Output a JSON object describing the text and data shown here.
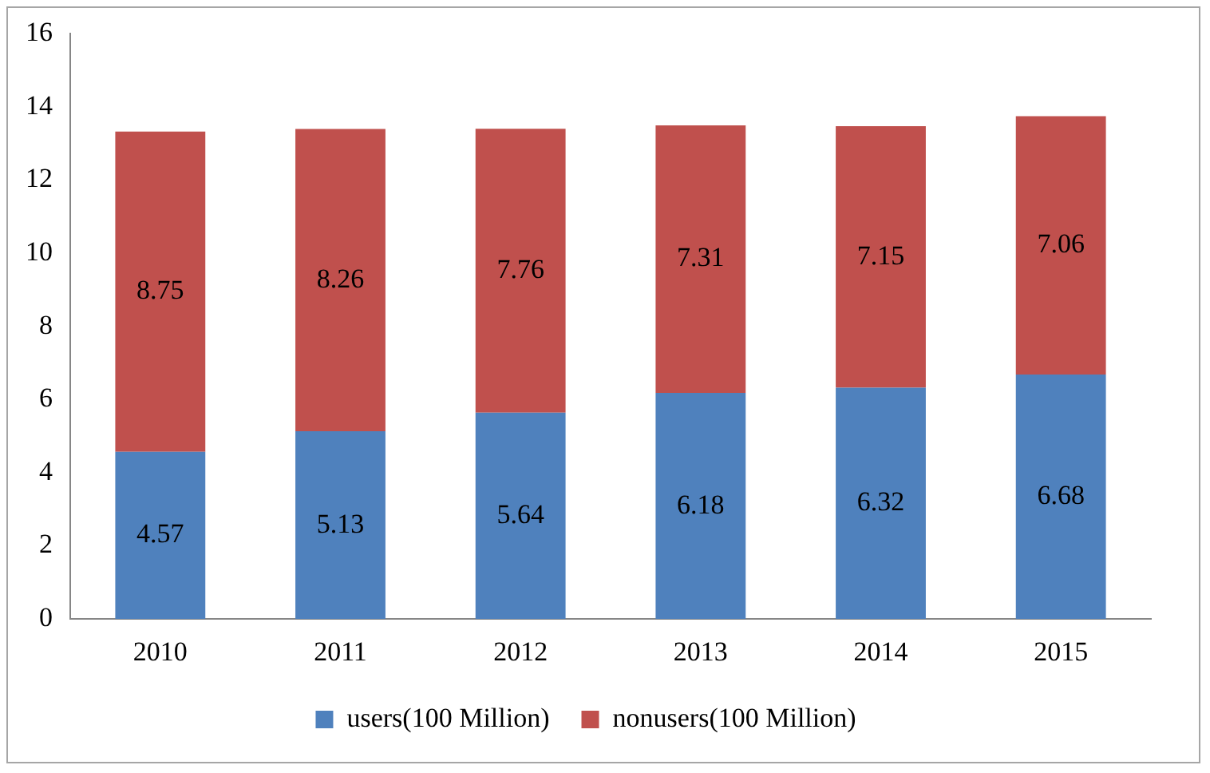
{
  "chart_data": {
    "type": "bar",
    "stacked": true,
    "categories": [
      "2010",
      "2011",
      "2012",
      "2013",
      "2014",
      "2015"
    ],
    "series": [
      {
        "name": "users(100 Million)",
        "color": "#4f81bd",
        "values": [
          4.57,
          5.13,
          5.64,
          6.18,
          6.32,
          6.68
        ]
      },
      {
        "name": "nonusers(100 Million)",
        "color": "#c0504d",
        "values": [
          8.75,
          8.26,
          7.76,
          7.31,
          7.15,
          7.06
        ]
      }
    ],
    "ylim": [
      0,
      16
    ],
    "yticks": [
      0,
      2,
      4,
      6,
      8,
      10,
      12,
      14,
      16
    ],
    "grid": false,
    "legend": "bottom",
    "data_labels": true
  }
}
